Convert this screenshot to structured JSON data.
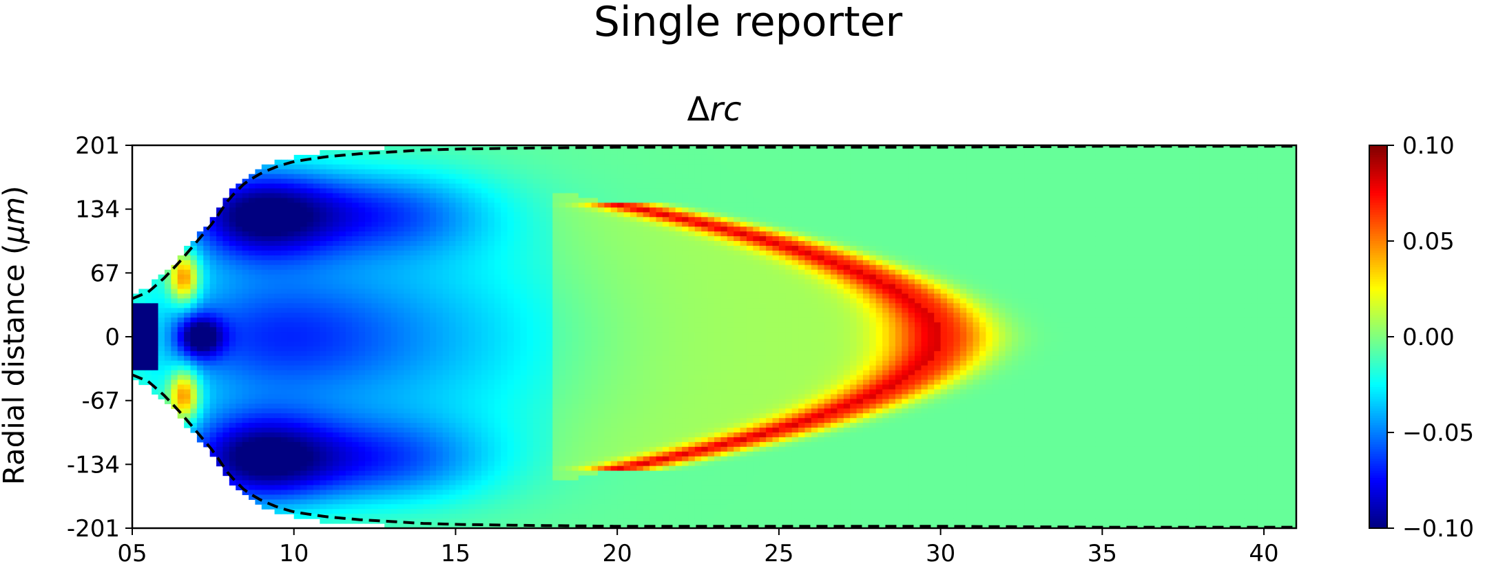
{
  "figure": {
    "suptitle": "Single reporter",
    "colors": {
      "background": "#ffffff",
      "contour": "#000000"
    }
  },
  "chart_data": {
    "type": "heatmap",
    "title": "Δrc",
    "title_symbol": "Δ",
    "title_var": "rc",
    "xlabel": "",
    "ylabel": "Radial distance (μm)",
    "ylabel_prefix": "Radial distance (",
    "ylabel_unit": "μm",
    "ylabel_suffix": ")",
    "xlim": [
      5,
      41
    ],
    "ylim": [
      -201,
      201
    ],
    "xticks": [
      5,
      10,
      15,
      20,
      25,
      30,
      35,
      40
    ],
    "xtick_labels": [
      "05",
      "10",
      "15",
      "20",
      "25",
      "30",
      "35",
      "40"
    ],
    "yticks": [
      201,
      134,
      67,
      0,
      -67,
      -134,
      -201
    ],
    "ytick_labels": [
      "201",
      "134",
      "67",
      "0",
      "-67",
      "-134",
      "-201"
    ],
    "colormap": "jet",
    "clim": [
      -0.1,
      0.1
    ],
    "colorbar_ticks": [
      0.1,
      0.05,
      0.0,
      -0.05,
      -0.1
    ],
    "colorbar_tick_labels": [
      "0.10",
      "0.05",
      "0.00",
      "−0.05",
      "−0.10"
    ],
    "boundary_contour": {
      "style": "dashed",
      "x": [
        5.0,
        5.5,
        6.0,
        6.5,
        7.0,
        7.5,
        8.0,
        8.5,
        9.0,
        9.5,
        10.0,
        11.0,
        12.0,
        13.0,
        14.0,
        15.0,
        17.0,
        20.0,
        25.0,
        30.0,
        35.0,
        41.0
      ],
      "y_upper": [
        40,
        47,
        62,
        80,
        100,
        120,
        145,
        162,
        172,
        179,
        184,
        189,
        192,
        194,
        196,
        197,
        198,
        199,
        199,
        199,
        200,
        200
      ]
    },
    "features": [
      {
        "description": "dark-blue core near origin",
        "x": [
          5.0,
          5.8
        ],
        "y": [
          -33,
          33
        ],
        "value": -0.1
      },
      {
        "description": "orange/red lobes near x≈6.6",
        "x": 6.6,
        "y": [
          60,
          -60
        ],
        "value": 0.05
      },
      {
        "description": "blue regions",
        "x": [
          8,
          14
        ],
        "y": [
          130,
          -130
        ],
        "value": -0.06
      },
      {
        "description": "orange parabolic band",
        "vertex": [
          30,
          0
        ],
        "ends": [
          [
            22,
            125
          ],
          [
            22,
            -125
          ]
        ],
        "value": 0.045
      }
    ],
    "grid": false,
    "legend": "none"
  }
}
